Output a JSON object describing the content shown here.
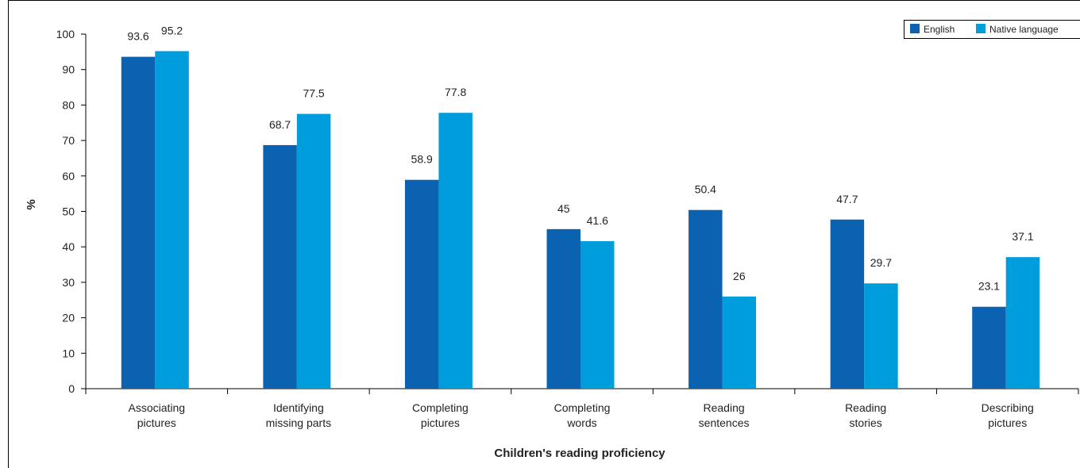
{
  "chart_data": {
    "type": "bar",
    "title": "",
    "xlabel": "Children's reading proficiency",
    "ylabel": "%",
    "ylim": [
      0,
      100
    ],
    "yticks": [
      0,
      10,
      20,
      30,
      40,
      50,
      60,
      70,
      80,
      90,
      100
    ],
    "categories": [
      [
        "Associating",
        "pictures"
      ],
      [
        "Identifying",
        "missing parts"
      ],
      [
        "Completing",
        "pictures"
      ],
      [
        "Completing",
        "words"
      ],
      [
        "Reading",
        "sentences"
      ],
      [
        "Reading",
        "stories"
      ],
      [
        "Describing",
        "pictures"
      ]
    ],
    "series": [
      {
        "name": "English",
        "color": "#0b62b0",
        "values": [
          93.6,
          68.7,
          58.9,
          45,
          50.4,
          47.7,
          23.1
        ]
      },
      {
        "name": "Native language",
        "color": "#009ddc",
        "values": [
          95.2,
          77.5,
          77.8,
          41.6,
          26,
          29.7,
          37.1
        ]
      }
    ],
    "legend_position": "top-right",
    "grid": false
  }
}
